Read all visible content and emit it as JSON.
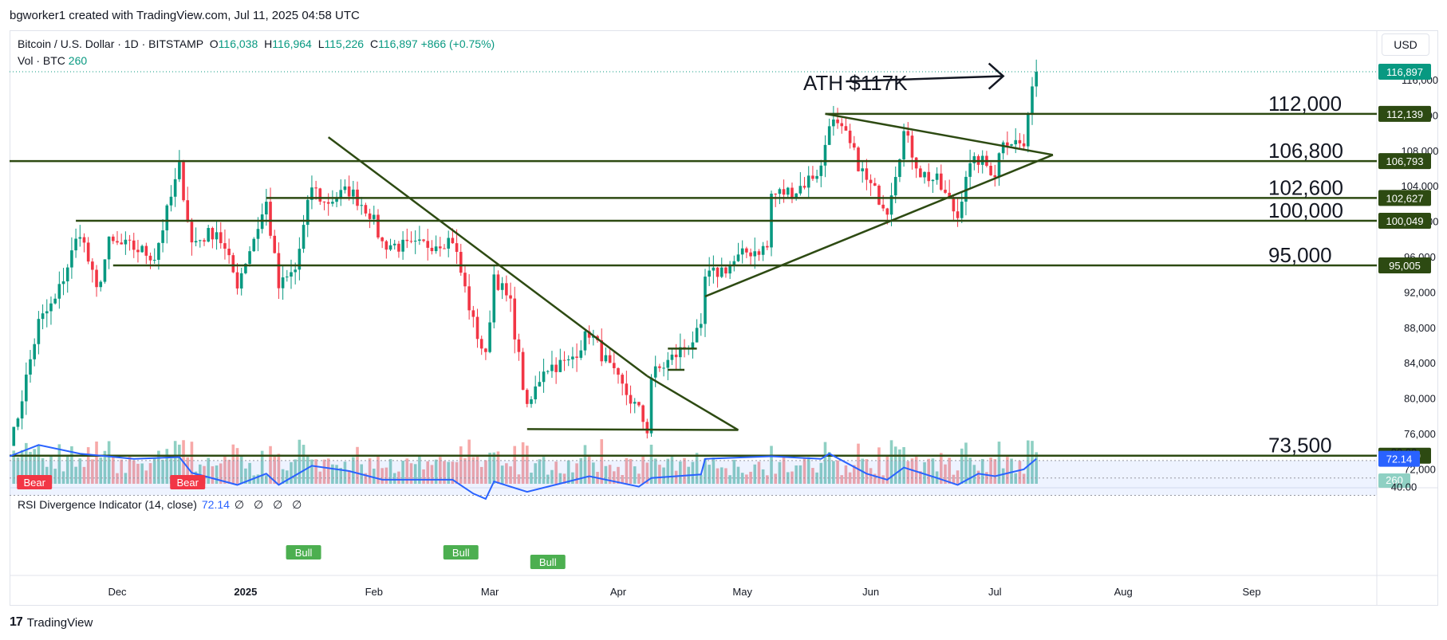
{
  "header": {
    "created_by": "bgworker1 created with TradingView.com, Jul 11, 2025 04:58 UTC"
  },
  "legend": {
    "symbol": "Bitcoin / U.S. Dollar · 1D · BITSTAMP",
    "open_label": "O",
    "open": "116,038",
    "high_label": "H",
    "high": "116,964",
    "low_label": "L",
    "low": "115,226",
    "close_label": "C",
    "close": "116,897",
    "change": "+866 (+0.75%)",
    "vol_label": "Vol · BTC",
    "vol": "260"
  },
  "rsi_legend": {
    "name": "RSI Divergence Indicator (14, close)",
    "value": "72.14",
    "extras": "∅ ∅ ∅ ∅"
  },
  "currency_button": "USD",
  "footer": {
    "logo": "17",
    "brand": "TradingView"
  },
  "colors": {
    "up": "#089981",
    "down": "#f23645",
    "up_vol": "#8fd0c3",
    "down_vol": "#f7a9a8",
    "line": "#2d4a12",
    "rsi": "#2962ff",
    "bull": "#4caf50",
    "bear": "#f23645"
  },
  "chart_data": {
    "type": "candlestick",
    "price_axis": {
      "ticks": [
        72000,
        76000,
        80000,
        84000,
        88000,
        92000,
        96000,
        100000,
        104000,
        108000,
        112000,
        116000
      ],
      "range": [
        70500,
        119000
      ]
    },
    "time_axis": {
      "labels": [
        {
          "text": "Dec",
          "date": "2024-12-01"
        },
        {
          "text": "2025",
          "date": "2025-01-01",
          "bold": true
        },
        {
          "text": "Feb",
          "date": "2025-02-01"
        },
        {
          "text": "Mar",
          "date": "2025-03-01"
        },
        {
          "text": "Apr",
          "date": "2025-04-01"
        },
        {
          "text": "May",
          "date": "2025-05-01"
        },
        {
          "text": "Jun",
          "date": "2025-06-01"
        },
        {
          "text": "Jul",
          "date": "2025-07-01"
        },
        {
          "text": "Aug",
          "date": "2025-08-01"
        },
        {
          "text": "Sep",
          "date": "2025-09-01"
        }
      ]
    },
    "close_anchors": [
      [
        "2024-11-05",
        75500
      ],
      [
        "2024-11-06",
        76000
      ],
      [
        "2024-11-12",
        88500
      ],
      [
        "2024-11-16",
        91000
      ],
      [
        "2024-11-22",
        99000
      ],
      [
        "2024-11-26",
        92000
      ],
      [
        "2024-11-29",
        97500
      ],
      [
        "2024-12-05",
        97000
      ],
      [
        "2024-12-10",
        96000
      ],
      [
        "2024-12-16",
        106000
      ],
      [
        "2024-12-19",
        97500
      ],
      [
        "2024-12-25",
        99000
      ],
      [
        "2024-12-30",
        93000
      ],
      [
        "2025-01-06",
        102000
      ],
      [
        "2025-01-09",
        92500
      ],
      [
        "2025-01-13",
        94500
      ],
      [
        "2025-01-17",
        104000
      ],
      [
        "2025-01-20",
        102000
      ],
      [
        "2025-01-26",
        103500
      ],
      [
        "2025-01-31",
        101000
      ],
      [
        "2025-02-03",
        97500
      ],
      [
        "2025-02-10",
        97000
      ],
      [
        "2025-02-20",
        98000
      ],
      [
        "2025-02-25",
        88500
      ],
      [
        "2025-02-28",
        84500
      ],
      [
        "2025-03-02",
        94000
      ],
      [
        "2025-03-06",
        90500
      ],
      [
        "2025-03-10",
        78500
      ],
      [
        "2025-03-14",
        83500
      ],
      [
        "2025-03-20",
        84000
      ],
      [
        "2025-03-25",
        87500
      ],
      [
        "2025-03-31",
        82500
      ],
      [
        "2025-04-06",
        78500
      ],
      [
        "2025-04-08",
        76500
      ],
      [
        "2025-04-09",
        82500
      ],
      [
        "2025-04-14",
        84500
      ],
      [
        "2025-04-21",
        87500
      ],
      [
        "2025-04-22",
        93500
      ],
      [
        "2025-04-28",
        95000
      ],
      [
        "2025-05-02",
        96500
      ],
      [
        "2025-05-07",
        97000
      ],
      [
        "2025-05-08",
        103000
      ],
      [
        "2025-05-14",
        103500
      ],
      [
        "2025-05-20",
        106000
      ],
      [
        "2025-05-22",
        111500
      ],
      [
        "2025-05-26",
        109500
      ],
      [
        "2025-05-31",
        104500
      ],
      [
        "2025-06-05",
        101500
      ],
      [
        "2025-06-09",
        110000
      ],
      [
        "2025-06-13",
        105500
      ],
      [
        "2025-06-17",
        104500
      ],
      [
        "2025-06-22",
        100500
      ],
      [
        "2025-06-24",
        105500
      ],
      [
        "2025-06-27",
        107000
      ],
      [
        "2025-07-01",
        105500
      ],
      [
        "2025-07-03",
        109500
      ],
      [
        "2025-07-08",
        108500
      ],
      [
        "2025-07-09",
        111300
      ],
      [
        "2025-07-10",
        116000
      ],
      [
        "2025-07-11",
        116897
      ]
    ],
    "volume_scale_max": 3000,
    "rsi": {
      "range": [
        20,
        90
      ],
      "ticks": [
        40,
        80
      ],
      "band": [
        30,
        70
      ],
      "mid": 50,
      "value": 72.14,
      "anchors": [
        [
          "2024-11-05",
          75
        ],
        [
          "2024-11-12",
          88
        ],
        [
          "2024-11-22",
          78
        ],
        [
          "2024-12-05",
          72
        ],
        [
          "2024-12-16",
          74
        ],
        [
          "2024-12-19",
          56
        ],
        [
          "2024-12-30",
          42
        ],
        [
          "2025-01-06",
          55
        ],
        [
          "2025-01-09",
          42
        ],
        [
          "2025-01-17",
          64
        ],
        [
          "2025-01-26",
          58
        ],
        [
          "2025-02-03",
          48
        ],
        [
          "2025-02-20",
          48
        ],
        [
          "2025-02-25",
          32
        ],
        [
          "2025-02-28",
          26
        ],
        [
          "2025-03-02",
          46
        ],
        [
          "2025-03-10",
          34
        ],
        [
          "2025-03-20",
          46
        ],
        [
          "2025-03-25",
          52
        ],
        [
          "2025-04-06",
          40
        ],
        [
          "2025-04-09",
          50
        ],
        [
          "2025-04-21",
          54
        ],
        [
          "2025-04-22",
          72
        ],
        [
          "2025-05-08",
          75
        ],
        [
          "2025-05-20",
          72
        ],
        [
          "2025-05-22",
          78
        ],
        [
          "2025-05-31",
          55
        ],
        [
          "2025-06-05",
          48
        ],
        [
          "2025-06-09",
          62
        ],
        [
          "2025-06-17",
          50
        ],
        [
          "2025-06-22",
          42
        ],
        [
          "2025-06-27",
          55
        ],
        [
          "2025-07-01",
          52
        ],
        [
          "2025-07-08",
          60
        ],
        [
          "2025-07-11",
          72.14
        ]
      ]
    },
    "signals": [
      {
        "text": "Bear",
        "date": "2024-11-11",
        "kind": "bear",
        "pane": "price"
      },
      {
        "text": "Bear",
        "date": "2024-12-18",
        "kind": "bear",
        "pane": "price"
      },
      {
        "text": "Bull",
        "date": "2025-01-15",
        "kind": "bull",
        "pane": "rsi"
      },
      {
        "text": "Bull",
        "date": "2025-02-22",
        "kind": "bull",
        "pane": "rsi"
      },
      {
        "text": "Bull",
        "date": "2025-03-15",
        "kind": "bull",
        "pane": "rsi"
      }
    ],
    "horizontal_levels": [
      {
        "label": "112,000",
        "price": 112139,
        "tag": "112,139",
        "from": "2025-05-21"
      },
      {
        "label": "106,800",
        "price": 106793,
        "tag": "106,793",
        "from": "2024-11-01"
      },
      {
        "label": "102,600",
        "price": 102627,
        "tag": "102,627",
        "from": "2025-01-06"
      },
      {
        "label": "100,000",
        "price": 100049,
        "tag": "100,049",
        "from": "2024-11-21"
      },
      {
        "label": "95,000",
        "price": 95005,
        "tag": "95,005",
        "from": "2024-11-30"
      },
      {
        "label": "73,500",
        "price": 73500,
        "tag": "73,500",
        "from": "2024-11-01"
      }
    ],
    "trendlines": [
      {
        "from": [
          "2025-01-21",
          109500
        ],
        "to": [
          "2025-04-08",
          82500
        ]
      },
      {
        "from": [
          "2025-03-10",
          76500
        ],
        "to": [
          "2025-04-30",
          76400
        ]
      },
      {
        "from": [
          "2025-04-08",
          82500
        ],
        "to": [
          "2025-04-30",
          76400
        ]
      },
      {
        "from": [
          "2025-05-21",
          112139
        ],
        "to": [
          "2025-07-15",
          107500
        ]
      },
      {
        "from": [
          "2025-04-22",
          91500
        ],
        "to": [
          "2025-07-15",
          107500
        ]
      },
      {
        "from": [
          "2025-04-13",
          85600
        ],
        "to": [
          "2025-04-20",
          85600
        ]
      },
      {
        "from": [
          "2025-04-13",
          83200
        ],
        "to": [
          "2025-04-17",
          83200
        ]
      }
    ],
    "annotation": {
      "text": "ATH $117K",
      "arrow_from": [
        "2025-05-26",
        115800
      ],
      "arrow_to": [
        "2025-07-03",
        116400
      ]
    },
    "last_price_tag": "116,897",
    "volume_tag": "260",
    "rsi_tag": "72.14"
  }
}
